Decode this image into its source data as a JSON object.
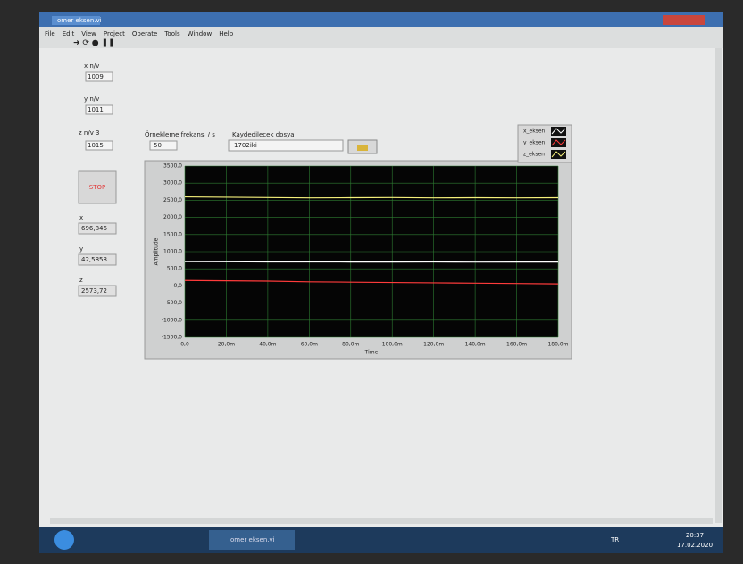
{
  "window": {
    "title": "omer eksen.vi",
    "menu": [
      "File",
      "Edit",
      "View",
      "Project",
      "Operate",
      "Tools",
      "Window",
      "Help"
    ]
  },
  "controls": {
    "x_nv": {
      "label": "x n/v",
      "value": "1009"
    },
    "y_nv": {
      "label": "y n/v",
      "value": "1011"
    },
    "z_nv": {
      "label": "z n/v 3",
      "value": "1015"
    },
    "sampling": {
      "label": "Örnekleme frekansı / s",
      "value": "50"
    },
    "file": {
      "label": "Kaydedilecek dosya",
      "value": "1702iki"
    },
    "stop": "STOP",
    "x_out": {
      "label": "x",
      "value": "696,846"
    },
    "y_out": {
      "label": "y",
      "value": "42,5858"
    },
    "z_out": {
      "label": "z",
      "value": "2573,72"
    }
  },
  "chart_data": {
    "type": "line",
    "xlabel": "Time",
    "ylabel": "Amplitude",
    "x": [
      0,
      0.02,
      0.04,
      0.06,
      0.08,
      0.1,
      0.12,
      0.14,
      0.16,
      0.18
    ],
    "series": [
      {
        "name": "x_eksen",
        "color": "#ffffff",
        "values": [
          710,
          705,
          700,
          700,
          698,
          697,
          700,
          695,
          697,
          697
        ]
      },
      {
        "name": "y_eksen",
        "color": "#ff3b3b",
        "values": [
          160,
          150,
          140,
          120,
          110,
          100,
          90,
          80,
          70,
          60
        ]
      },
      {
        "name": "z_eksen",
        "color": "#f5f07a",
        "values": [
          2600,
          2590,
          2580,
          2570,
          2575,
          2580,
          2570,
          2575,
          2570,
          2575
        ]
      }
    ],
    "xlim": [
      0,
      0.18
    ],
    "ylim": [
      -1500,
      3500
    ],
    "xticks": [
      {
        "value": 0,
        "label": "0,0"
      },
      {
        "value": 0.02,
        "label": "20,0m"
      },
      {
        "value": 0.04,
        "label": "40,0m"
      },
      {
        "value": 0.06,
        "label": "60,0m"
      },
      {
        "value": 0.08,
        "label": "80,0m"
      },
      {
        "value": 0.1,
        "label": "100,0m"
      },
      {
        "value": 0.12,
        "label": "120,0m"
      },
      {
        "value": 0.14,
        "label": "140,0m"
      },
      {
        "value": 0.16,
        "label": "160,0m"
      },
      {
        "value": 0.18,
        "label": "180,0m"
      }
    ],
    "yticks": [
      {
        "value": -1500,
        "label": "-1500,0"
      },
      {
        "value": -1000,
        "label": "-1000,0"
      },
      {
        "value": -500,
        "label": "-500,0"
      },
      {
        "value": 0,
        "label": "0,0"
      },
      {
        "value": 500,
        "label": "500,0"
      },
      {
        "value": 1000,
        "label": "1000,0"
      },
      {
        "value": 1500,
        "label": "1500,0"
      },
      {
        "value": 2000,
        "label": "2000,0"
      },
      {
        "value": 2500,
        "label": "2500,0"
      },
      {
        "value": 3000,
        "label": "3000,0"
      },
      {
        "value": 3500,
        "label": "3500,0"
      }
    ],
    "grid": true,
    "grid_color": "#2e7d32",
    "background": "#050505"
  },
  "taskbar": {
    "button": "omer eksen.vi",
    "lang": "TR",
    "time": "20:37",
    "date": "17.02.2020"
  }
}
